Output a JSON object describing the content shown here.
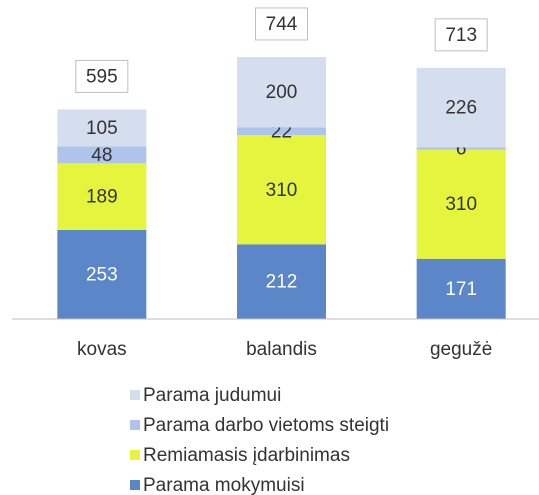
{
  "chart_data": {
    "type": "stacked_bar",
    "categories": [
      "kovas",
      "balandis",
      "gegužė"
    ],
    "series": [
      {
        "name": "Parama mokymuisi",
        "color": "#5b87c9",
        "values": [
          253,
          212,
          171
        ]
      },
      {
        "name": "Remiamasis įdarbinimas",
        "color": "#e5f53d",
        "values": [
          189,
          310,
          310
        ]
      },
      {
        "name": "Parama darbo vietoms steigti",
        "color": "#aec4ea",
        "values": [
          48,
          22,
          6
        ]
      },
      {
        "name": "Parama judumui",
        "color": "#d5deef",
        "values": [
          105,
          200,
          226
        ]
      }
    ],
    "totals": [
      595,
      744,
      713
    ],
    "ylim": [
      0,
      900
    ],
    "legend": "bottom"
  }
}
